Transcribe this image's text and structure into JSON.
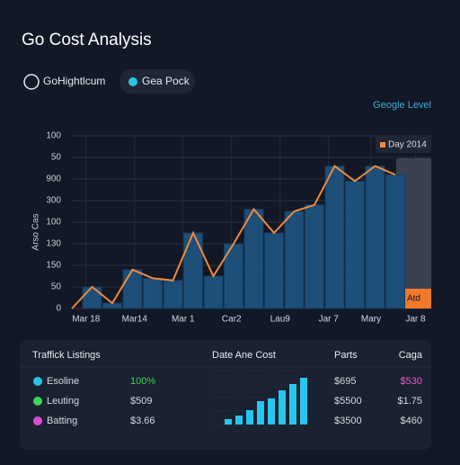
{
  "header": {
    "title": "Go Cost Analysis"
  },
  "tabs": [
    "GoHightlcum",
    "Gea Pock"
  ],
  "link": "Geogle Level",
  "chart_data": {
    "type": "area",
    "y_label": "Arso Cas",
    "x": [
      0,
      1,
      2,
      3,
      4,
      5,
      6,
      7,
      8,
      9,
      10,
      11,
      12,
      13,
      14,
      15,
      16
    ],
    "series": [
      {
        "name": "Day 2014",
        "color": "#f08a3c",
        "values": [
          0,
          1,
          0.25,
          1.8,
          1.4,
          1.3,
          3.5,
          1.5,
          3,
          4.6,
          3.5,
          4.5,
          4.8,
          6.6,
          5.9,
          6.6,
          6.2
        ]
      }
    ],
    "bar_color": "#1d4f78",
    "highlight_label": "Atd",
    "xlim": [
      0,
      18
    ],
    "xticks": [
      {
        "value": 0.7,
        "label": "Mar 18"
      },
      {
        "value": 3.1,
        "label": "Mar14"
      },
      {
        "value": 5.5,
        "label": "Mar 1"
      },
      {
        "value": 7.9,
        "label": "Car2"
      },
      {
        "value": 10.3,
        "label": "Lau9"
      },
      {
        "value": 12.7,
        "label": "Jar 7"
      },
      {
        "value": 14.8,
        "label": "Mary"
      },
      {
        "value": 17,
        "label": "Jar 8"
      }
    ],
    "ylim": [
      0,
      8
    ],
    "yticks": [
      0,
      {
        "value": 1,
        "label": "50"
      },
      {
        "value": 2,
        "label": "150"
      },
      {
        "value": 3,
        "label": "130"
      },
      {
        "value": 4,
        "label": "100"
      },
      {
        "value": 5,
        "label": "300"
      },
      {
        "value": 6,
        "label": "900"
      },
      {
        "value": 7,
        "label": "50"
      },
      {
        "value": 8,
        "label": "100"
      }
    ],
    "grid": true
  },
  "table": {
    "headers": [
      "Traffick Listings",
      "Date Ane Cost",
      "Parts",
      "Caga"
    ],
    "rows": [
      [
        "Esoline",
        "100%",
        "$695",
        "$530"
      ],
      [
        "Leuting",
        "$509",
        "$5500",
        "$1.75"
      ],
      [
        "Batting",
        "$3.66",
        "$3500",
        "$460"
      ]
    ]
  },
  "mini_chart": {
    "type": "bar",
    "color": "#27c6ee",
    "values": [
      0.6,
      1,
      1.6,
      2.6,
      2.9,
      3.8,
      4.5,
      5.2
    ],
    "ylim": [
      0,
      6
    ]
  }
}
